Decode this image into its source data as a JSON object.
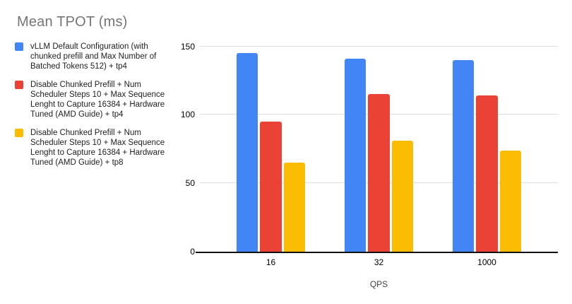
{
  "page": {
    "background": "#ffffff"
  },
  "chart_data": {
    "type": "bar",
    "title": "Mean TPOT (ms)",
    "title_color": "#757575",
    "categories": [
      "16",
      "32",
      "1000"
    ],
    "series": [
      {
        "name": "vLLM Default Configuration (with chunked prefill and Max Number of Batched Tokens 512) + tp4",
        "color": "#4285F4",
        "values": [
          145,
          141,
          140
        ]
      },
      {
        "name": "Disable Chunked Prefill + Num Scheduler Steps 10 + Max Sequence Lenght to Capture 16384 + Hardware Tuned (AMD Guide) + tp4",
        "color": "#EA4335",
        "values": [
          95,
          115,
          114
        ]
      },
      {
        "name": "Disable Chunked Prefill + Num Scheduler Steps 10 + Max Sequence Lenght to Capture 16384 + Hardware Tuned (AMD Guide) + tp8",
        "color": "#FBBC04",
        "values": [
          65,
          81,
          74
        ]
      }
    ],
    "xlabel": "QPS",
    "ylabel": "",
    "yticks": [
      0,
      50,
      100,
      150
    ],
    "ylim": [
      0,
      155
    ],
    "grid": true,
    "legend_position": "left",
    "gridline_color": "#dadce0",
    "axis_line_color": "#111111",
    "tick_label_color": "#000000",
    "legend_text_color": "#212121",
    "xlabel_color": "#424242"
  }
}
